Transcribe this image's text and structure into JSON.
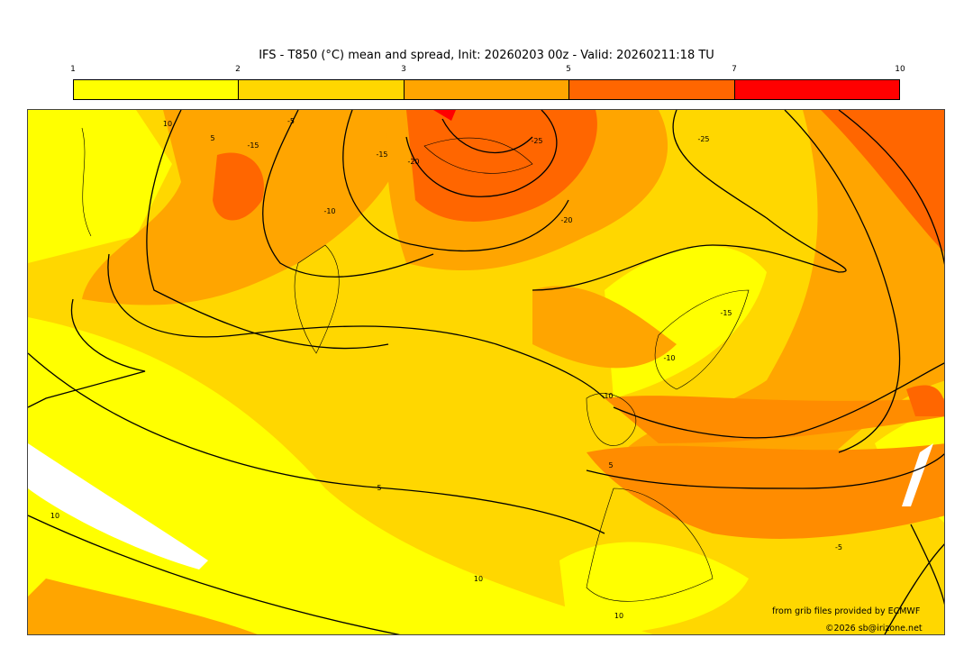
{
  "title": "IFS - T850 (°C) mean and spread, Init: 20260203 00z - Valid: 20260211:18 TU",
  "colorbar": {
    "ticks": [
      "1",
      "2",
      "3",
      "5",
      "7",
      "10"
    ],
    "colors": [
      "#ffff00",
      "#ffd700",
      "#ffa500",
      "#ff6600",
      "#ff0000"
    ]
  },
  "contour_labels": [
    "10",
    "5",
    "-5",
    "-10",
    "-15",
    "-20",
    "-25",
    "-20",
    "-25",
    "-15",
    "-10",
    "-15",
    "-10",
    "5",
    "5",
    "-5",
    "10",
    "10",
    "10"
  ],
  "credits": {
    "source": "from grib files provided by ECMWF",
    "copyright": "©2026 sb@irizone.net"
  }
}
